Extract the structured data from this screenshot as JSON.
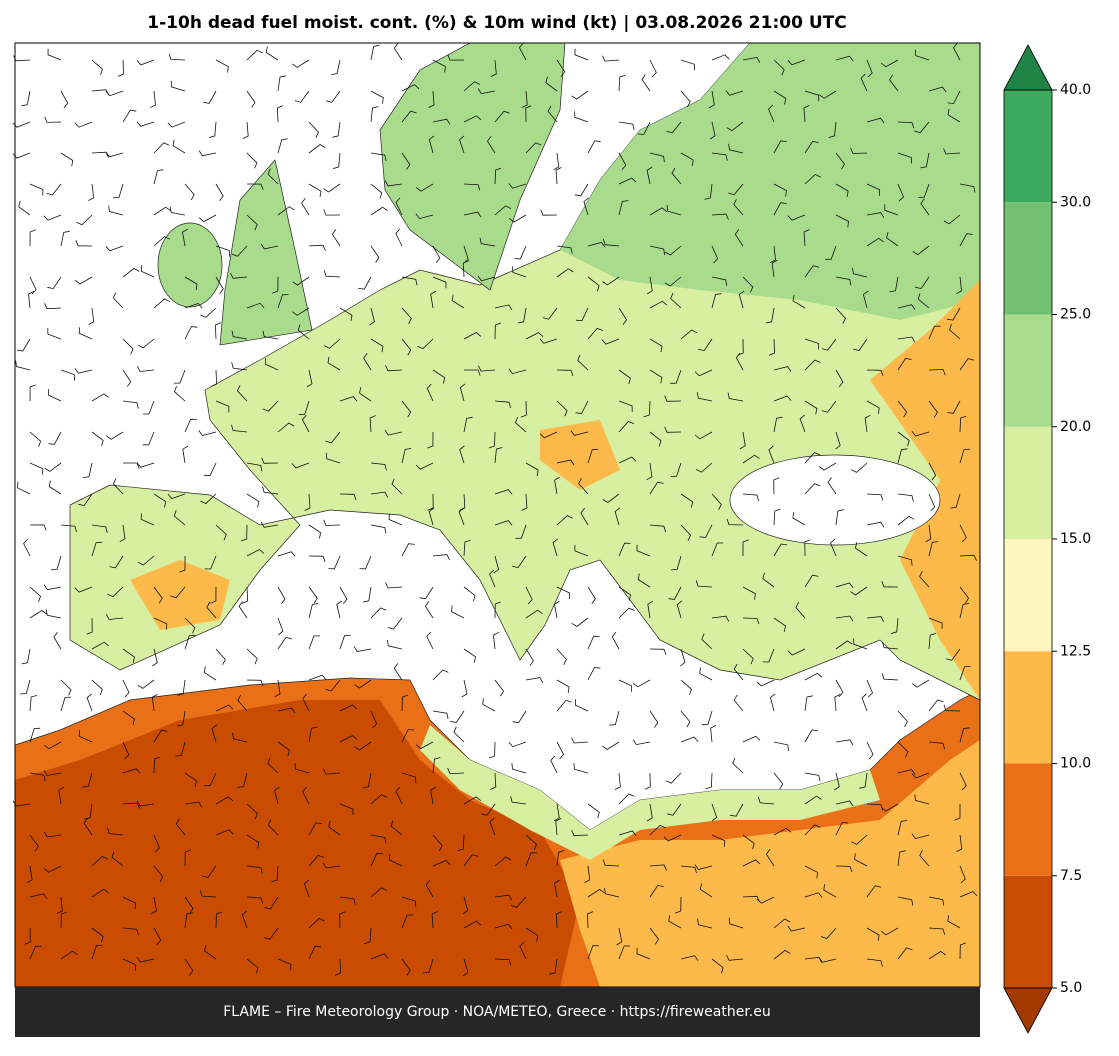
{
  "map": {
    "title": "1-10h dead fuel moist. cont. (%) & 10m wind (kt)  |  03.08.2026 21:00 UTC",
    "footer": "FLAME – Fire Meteorology Group · NOA/METEO, Greece · https://fireweather.eu",
    "colorbar": {
      "ticks": [
        {
          "value": 5,
          "label": "5.0"
        },
        {
          "value": 7.5,
          "label": "7.5"
        },
        {
          "value": 10,
          "label": "10.0"
        },
        {
          "value": 12.5,
          "label": "12.5"
        },
        {
          "value": 15,
          "label": "15.0"
        },
        {
          "value": 20,
          "label": "20.0"
        },
        {
          "value": 25,
          "label": "25.0"
        },
        {
          "value": 30,
          "label": "30.0"
        },
        {
          "value": 40,
          "label": "40.0"
        }
      ],
      "colors": [
        "#c94c02",
        "#ea7018",
        "#fdb94a",
        "#fff6bf",
        "#d7efa0",
        "#a8dc8c",
        "#72c173",
        "#3ca95c"
      ],
      "extend_colors": [
        "#a23a00",
        "#1f8445"
      ]
    }
  }
}
